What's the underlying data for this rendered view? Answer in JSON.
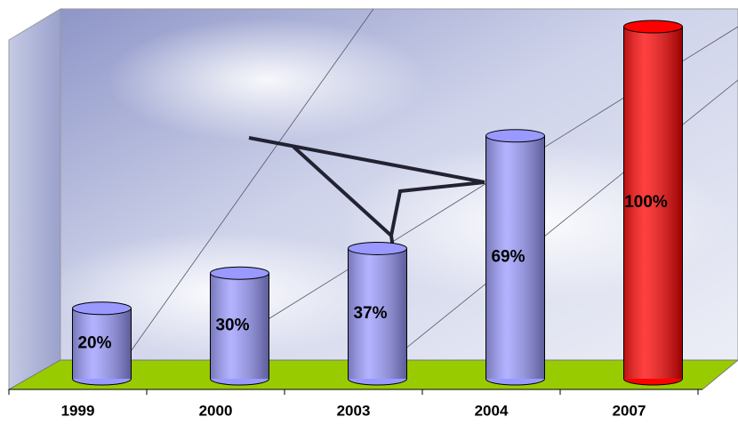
{
  "chart_data": {
    "type": "bar",
    "categories": [
      "1999",
      "2000",
      "2003",
      "2004",
      "2007"
    ],
    "values": [
      20,
      30,
      37,
      69,
      100
    ],
    "value_labels": [
      "20%",
      "30%",
      "37%",
      "69%",
      "100%"
    ],
    "colors": [
      "#9999ff",
      "#9999ff",
      "#9999ff",
      "#9999ff",
      "#ff0000"
    ]
  }
}
